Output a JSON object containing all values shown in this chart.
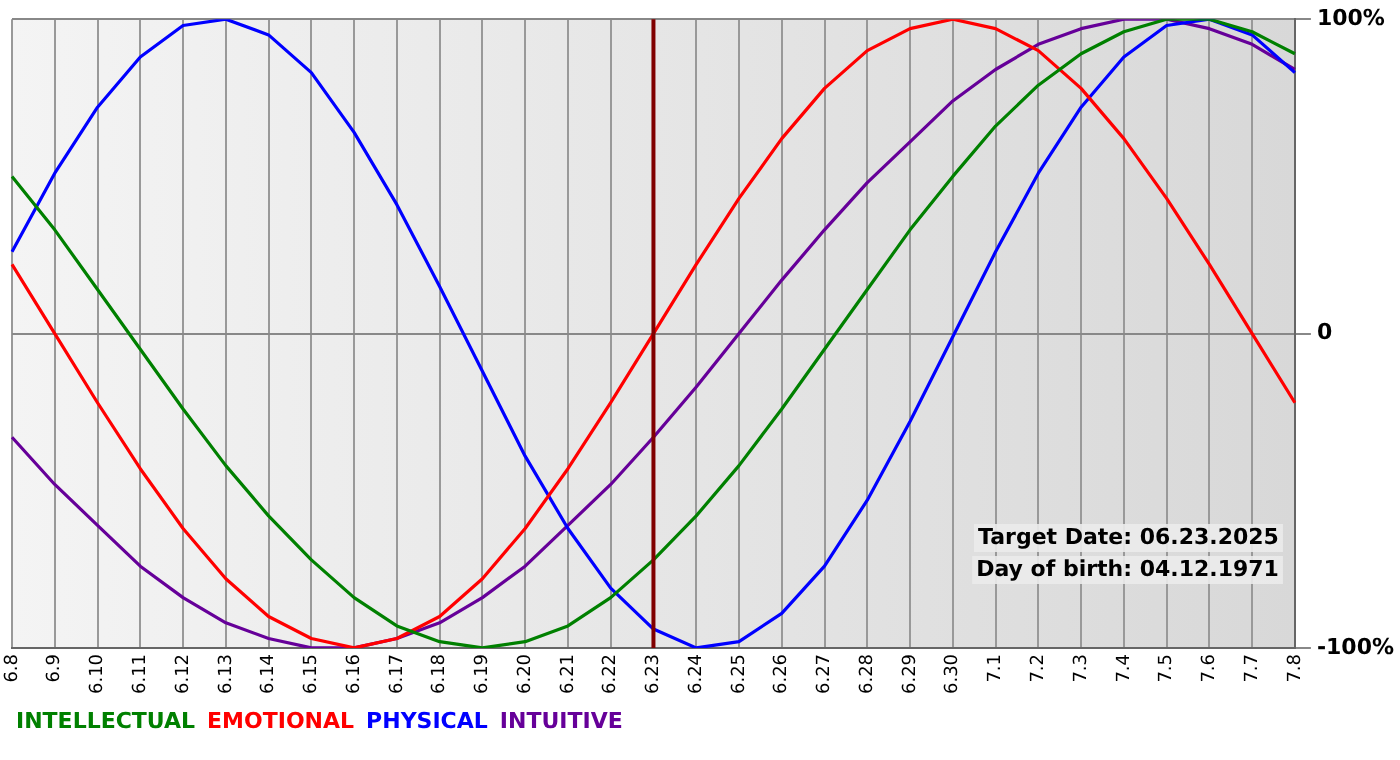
{
  "chart_data": {
    "type": "line",
    "categories": [
      "6.8",
      "6.9",
      "6.10",
      "6.11",
      "6.12",
      "6.13",
      "6.14",
      "6.15",
      "6.16",
      "6.17",
      "6.18",
      "6.19",
      "6.20",
      "6.21",
      "6.22",
      "6.23",
      "6.24",
      "6.25",
      "6.26",
      "6.27",
      "6.28",
      "6.29",
      "6.30",
      "7.1",
      "7.2",
      "7.3",
      "7.4",
      "7.5",
      "7.6",
      "7.7",
      "7.8"
    ],
    "series": [
      {
        "name": "INTELLECTUAL",
        "color": "#008000",
        "values": [
          50,
          33,
          14,
          -5,
          -24,
          -42,
          -58,
          -72,
          -84,
          -93,
          -98,
          -100,
          -98,
          -93,
          -84,
          -72,
          -58,
          -42,
          -24,
          -5,
          14,
          33,
          50,
          66,
          79,
          89,
          96,
          100,
          100,
          96,
          89
        ]
      },
      {
        "name": "EMOTIONAL",
        "color": "#ff0000",
        "values": [
          22,
          0,
          -22,
          -43,
          -62,
          -78,
          -90,
          -97,
          -100,
          -97,
          -90,
          -78,
          -62,
          -43,
          -22,
          0,
          22,
          43,
          62,
          78,
          90,
          97,
          100,
          97,
          90,
          78,
          62,
          43,
          22,
          0,
          -22
        ]
      },
      {
        "name": "PHYSICAL",
        "color": "#0000ff",
        "values": [
          26,
          51,
          72,
          88,
          98,
          100,
          95,
          83,
          64,
          41,
          15,
          -12,
          -39,
          -62,
          -81,
          -94,
          -100,
          -98,
          -89,
          -74,
          -53,
          -28,
          -1,
          26,
          51,
          72,
          88,
          98,
          100,
          95,
          83
        ]
      },
      {
        "name": "INTUITIVE",
        "color": "#660099",
        "values": [
          -33,
          -48,
          -61,
          -74,
          -84,
          -92,
          -97,
          -100,
          -100,
          -97,
          -92,
          -84,
          -74,
          -61,
          -48,
          -33,
          -17,
          0,
          17,
          33,
          48,
          61,
          74,
          84,
          92,
          97,
          100,
          100,
          97,
          92,
          84
        ]
      }
    ],
    "ylim": [
      -100,
      100
    ],
    "yticks": [
      {
        "value": 100,
        "label": "100%"
      },
      0,
      {
        "value": -100,
        "label": "-100%"
      }
    ],
    "grid": true,
    "legend": "bottom left",
    "marker": "none",
    "line_style": "solid",
    "ref_lines": [
      {
        "axis": "x",
        "value": "6.23",
        "color": "#800000"
      }
    ],
    "annotations": [
      "Target Date: 06.23.2025",
      "Day of birth: 04.12.1971"
    ]
  }
}
